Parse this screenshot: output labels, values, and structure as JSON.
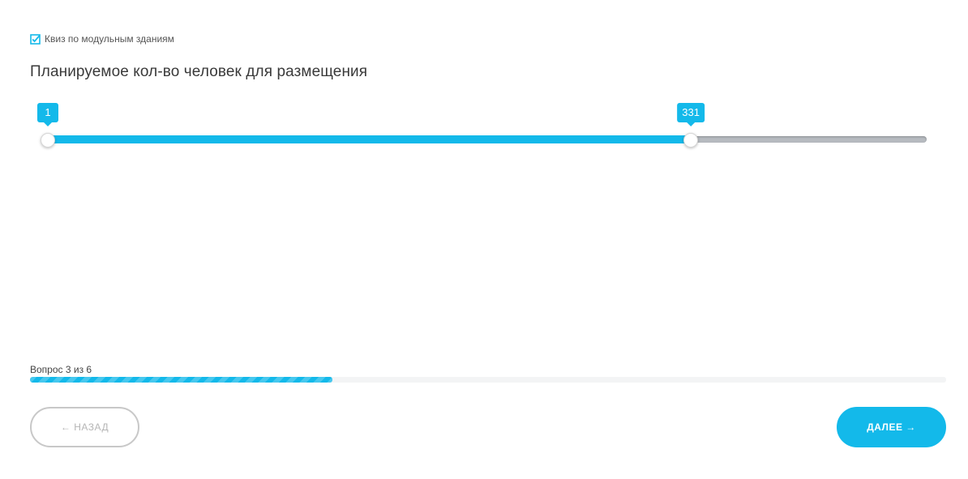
{
  "quiz": {
    "tag_label": "Квиз по модульным зданиям",
    "tag_icon": "checkbox-checked-icon",
    "accent_color": "#13b9ea"
  },
  "question": {
    "title": "Планируемое кол-во человек для размещения"
  },
  "slider": {
    "min": 1,
    "max": 452,
    "low_value": "1",
    "high_value": "331"
  },
  "progress": {
    "label": "Вопрос 3 из 6",
    "current": 3,
    "total": 6,
    "fill_fraction": 0.33
  },
  "buttons": {
    "back_label": "← НАЗАД",
    "next_label": "ДАЛЕЕ →"
  }
}
